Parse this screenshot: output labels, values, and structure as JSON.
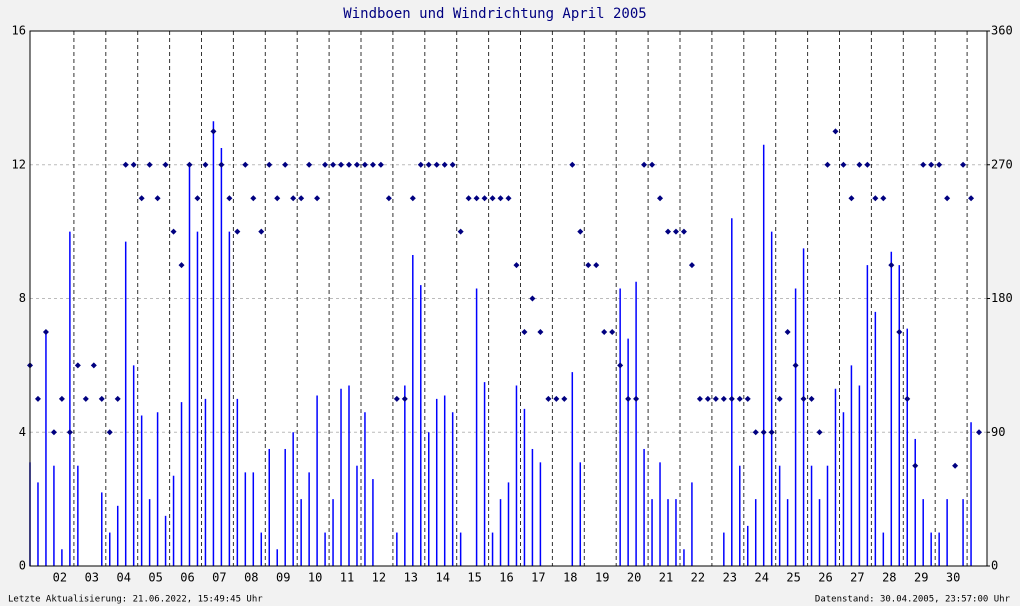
{
  "chart_data": {
    "type": "gust-direction",
    "title": "Windboen und Windrichtung April 2005",
    "footer_left": "Letzte Aktualisierung: 21.06.2022, 15:49:45 Uhr",
    "footer_right": "Datenstand: 30.04.2005, 23:57:00 Uhr",
    "x": [
      1,
      1.25,
      1.5,
      1.75,
      2,
      2.25,
      2.5,
      2.75,
      3,
      3.25,
      3.5,
      3.75,
      4,
      4.25,
      4.5,
      4.75,
      5,
      5.25,
      5.5,
      5.75,
      6,
      6.25,
      6.5,
      6.75,
      7,
      7.25,
      7.5,
      7.75,
      8,
      8.25,
      8.5,
      8.75,
      9,
      9.25,
      9.5,
      9.75,
      10,
      10.25,
      10.5,
      10.75,
      11,
      11.25,
      11.5,
      11.75,
      12,
      12.25,
      12.5,
      12.75,
      13,
      13.25,
      13.5,
      13.75,
      14,
      14.25,
      14.5,
      14.75,
      15,
      15.25,
      15.5,
      15.75,
      16,
      16.25,
      16.5,
      16.75,
      17,
      17.25,
      17.5,
      17.75,
      18,
      18.25,
      18.5,
      18.75,
      19,
      19.25,
      19.5,
      19.75,
      20,
      20.25,
      20.5,
      20.75,
      21,
      21.25,
      21.5,
      21.75,
      22,
      22.25,
      22.5,
      22.75,
      23,
      23.25,
      23.5,
      23.75,
      24,
      24.25,
      24.5,
      24.75,
      25,
      25.25,
      25.5,
      25.75,
      26,
      26.25,
      26.5,
      26.75,
      27,
      27.25,
      27.5,
      27.75,
      28,
      28.25,
      28.5,
      28.75,
      29,
      29.25,
      29.5,
      29.75,
      30,
      30.25,
      30.5,
      30.75
    ],
    "series": [
      {
        "name": "Windboen",
        "color": "#0000ff",
        "values": [
          3.1,
          2.5,
          7,
          3,
          0.5,
          10,
          3,
          0,
          0,
          2.2,
          1,
          1.8,
          9.7,
          6,
          4.5,
          2,
          4.6,
          1.5,
          2.7,
          4.9,
          12,
          10,
          5,
          13.3,
          12.5,
          10,
          5,
          2.8,
          2.8,
          1,
          3.5,
          0.5,
          3.5,
          4,
          2,
          2.8,
          5.1,
          1,
          2,
          5.3,
          5.4,
          3,
          4.6,
          2.6,
          0,
          0,
          1,
          5.4,
          9.3,
          8.4,
          4,
          5,
          5.1,
          4.6,
          1,
          0,
          8.3,
          5.5,
          1,
          2,
          2.5,
          5.4,
          4.7,
          3.5,
          3.1,
          0,
          0,
          0,
          5.8,
          3.1,
          0,
          0,
          0,
          0,
          8.3,
          6.8,
          8.5,
          3.5,
          2,
          3.1,
          2,
          2,
          0.5,
          2.5,
          0,
          0,
          0,
          1,
          10.4,
          3,
          1.2,
          2,
          12.6,
          10,
          3,
          2,
          8.3,
          9.5,
          3,
          2,
          3,
          5.3,
          4.6,
          6,
          5.4,
          9,
          7.6,
          1,
          9.4,
          9,
          7.1,
          3.8,
          2,
          1,
          1,
          2,
          0,
          2,
          4.3,
          0
        ]
      },
      {
        "name": "Windrichtung",
        "color": "#000080",
        "axis": "y2",
        "values": [
          135,
          112.5,
          157.5,
          90,
          112.5,
          90,
          135,
          112.5,
          135,
          112.5,
          90,
          112.5,
          270,
          270,
          247.5,
          270,
          247.5,
          270,
          225,
          202.5,
          270,
          247.5,
          270,
          292.5,
          270,
          247.5,
          225,
          270,
          247.5,
          225,
          270,
          247.5,
          270,
          247.5,
          247.5,
          270,
          247.5,
          270,
          270,
          270,
          270,
          270,
          270,
          270,
          270,
          247.5,
          112.5,
          112.5,
          247.5,
          270,
          270,
          270,
          270,
          270,
          225,
          247.5,
          247.5,
          247.5,
          247.5,
          247.5,
          247.5,
          202.5,
          157.5,
          180,
          157.5,
          112.5,
          112.5,
          112.5,
          270,
          225,
          202.5,
          202.5,
          157.5,
          157.5,
          135,
          112.5,
          112.5,
          270,
          270,
          247.5,
          225,
          225,
          225,
          202.5,
          112.5,
          112.5,
          112.5,
          112.5,
          112.5,
          112.5,
          112.5,
          90,
          90,
          90,
          112.5,
          157.5,
          135,
          112.5,
          112.5,
          90,
          270,
          292.5,
          270,
          247.5,
          270,
          270,
          247.5,
          247.5,
          202.5,
          157.5,
          112.5,
          67.5,
          270,
          270,
          270,
          247.5,
          67.5,
          270,
          247.5,
          90
        ]
      }
    ],
    "xlim": [
      1,
      31
    ],
    "xticks": [
      {
        "value": 2,
        "label": "02"
      },
      {
        "value": 3,
        "label": "03"
      },
      {
        "value": 4,
        "label": "04"
      },
      {
        "value": 5,
        "label": "05"
      },
      {
        "value": 6,
        "label": "06"
      },
      {
        "value": 7,
        "label": "07"
      },
      {
        "value": 8,
        "label": "08"
      },
      {
        "value": 9,
        "label": "09"
      },
      {
        "value": 10,
        "label": "10"
      },
      {
        "value": 11,
        "label": "11"
      },
      {
        "value": 12,
        "label": "12"
      },
      {
        "value": 13,
        "label": "13"
      },
      {
        "value": 14,
        "label": "14"
      },
      {
        "value": 15,
        "label": "15"
      },
      {
        "value": 16,
        "label": "16"
      },
      {
        "value": 17,
        "label": "17"
      },
      {
        "value": 18,
        "label": "18"
      },
      {
        "value": 19,
        "label": "19"
      },
      {
        "value": 20,
        "label": "20"
      },
      {
        "value": 21,
        "label": "21"
      },
      {
        "value": 22,
        "label": "22"
      },
      {
        "value": 23,
        "label": "23"
      },
      {
        "value": 24,
        "label": "24"
      },
      {
        "value": 25,
        "label": "25"
      },
      {
        "value": 26,
        "label": "26"
      },
      {
        "value": 27,
        "label": "27"
      },
      {
        "value": 28,
        "label": "28"
      },
      {
        "value": 29,
        "label": "29"
      },
      {
        "value": 30,
        "label": "30"
      }
    ],
    "ylim": [
      0,
      16
    ],
    "yticks": [
      0,
      4,
      8,
      12,
      16
    ],
    "y2lim": [
      0,
      360
    ],
    "y2ticks": [
      0,
      90,
      180,
      270,
      360
    ],
    "grid": true
  }
}
